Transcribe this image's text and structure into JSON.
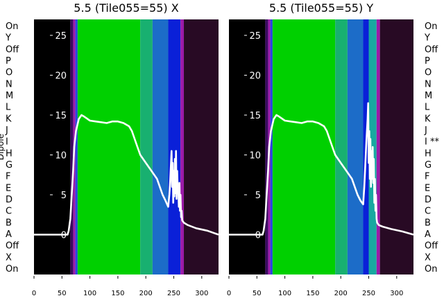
{
  "chart_data": [
    {
      "type": "heatmap",
      "title": "5.5 (Tile055=55) X",
      "ylabel": "Dipole",
      "xlim": [
        0,
        330
      ],
      "ylim": [
        -5,
        27
      ],
      "x_ticks": [
        0,
        50,
        100,
        150,
        200,
        250,
        300
      ],
      "y_ticks": [
        0,
        5,
        10,
        15,
        20,
        25
      ],
      "dipole_labels": [
        "On",
        "Y",
        "Off",
        "P",
        "O",
        "N",
        "M",
        "L",
        "K",
        "J",
        "I",
        "H",
        "G",
        "F",
        "E",
        "D",
        "C",
        "B",
        "A",
        "Off",
        "X",
        "On"
      ],
      "colormap_bands": [
        {
          "from": 0,
          "to": 65,
          "color": "#000000"
        },
        {
          "from": 65,
          "to": 70,
          "color": "#3a0a60"
        },
        {
          "from": 70,
          "to": 74,
          "color": "#9b1aa8"
        },
        {
          "from": 74,
          "to": 78,
          "color": "#2a40e0"
        },
        {
          "from": 78,
          "to": 190,
          "color": "#00d000"
        },
        {
          "from": 190,
          "to": 212,
          "color": "#18b070"
        },
        {
          "from": 212,
          "to": 240,
          "color": "#1c6cc8"
        },
        {
          "from": 240,
          "to": 262,
          "color": "#0a20d8"
        },
        {
          "from": 262,
          "to": 268,
          "color": "#9b1aa8"
        },
        {
          "from": 268,
          "to": 330,
          "color": "#280a24"
        }
      ],
      "series": [
        {
          "x": [
            0,
            60,
            62,
            65,
            70,
            72,
            75,
            80,
            85,
            90,
            100,
            110,
            120,
            130,
            140,
            150,
            160,
            170,
            175,
            180,
            185,
            190,
            200,
            210,
            220,
            230,
            235,
            240,
            242,
            243,
            244,
            245,
            246,
            247,
            248,
            249,
            250,
            251,
            252,
            253,
            254,
            255,
            256,
            257,
            258,
            259,
            260,
            261,
            262,
            263,
            264,
            265,
            268,
            275,
            290,
            310,
            330
          ],
          "y": [
            0,
            0,
            0.5,
            2,
            8,
            11,
            13,
            14.5,
            15,
            14.8,
            14.3,
            14.2,
            14.1,
            14,
            14.2,
            14.2,
            14,
            13.6,
            13,
            12,
            11,
            10,
            9,
            8,
            7,
            5,
            4.3,
            3.5,
            5,
            6,
            7.5,
            9,
            10.5,
            6,
            9,
            4,
            8,
            4.8,
            9.5,
            5.2,
            10.5,
            4.5,
            8,
            5.5,
            6,
            3.5,
            6.5,
            3,
            5,
            2.2,
            3,
            1.8,
            1.5,
            1.2,
            0.8,
            0.5,
            0
          ]
        }
      ]
    },
    {
      "type": "heatmap",
      "title": "5.5 (Tile055=55) Y",
      "xlim": [
        0,
        330
      ],
      "ylim": [
        -5,
        27
      ],
      "x_ticks": [
        0,
        50,
        100,
        150,
        200,
        250,
        300
      ],
      "y_ticks": [
        0,
        5,
        10,
        15,
        20,
        25
      ],
      "dipole_labels": [
        "On",
        "Y",
        "Off",
        "P",
        "O",
        "N",
        "M",
        "L",
        "K",
        "J",
        "I **",
        "H",
        "G",
        "F",
        "E",
        "D",
        "C",
        "B",
        "A",
        "Off",
        "X",
        "On"
      ],
      "colormap_bands": [
        {
          "from": 0,
          "to": 65,
          "color": "#000000"
        },
        {
          "from": 65,
          "to": 70,
          "color": "#3a0a60"
        },
        {
          "from": 70,
          "to": 74,
          "color": "#9b1aa8"
        },
        {
          "from": 74,
          "to": 78,
          "color": "#2a40e0"
        },
        {
          "from": 78,
          "to": 190,
          "color": "#00d000"
        },
        {
          "from": 190,
          "to": 212,
          "color": "#18b070"
        },
        {
          "from": 212,
          "to": 240,
          "color": "#1c6cc8"
        },
        {
          "from": 240,
          "to": 250,
          "color": "#0a20d8"
        },
        {
          "from": 250,
          "to": 264,
          "color": "#18a8a0"
        },
        {
          "from": 264,
          "to": 270,
          "color": "#9b1aa8"
        },
        {
          "from": 270,
          "to": 330,
          "color": "#280a24"
        }
      ],
      "series": [
        {
          "x": [
            0,
            60,
            62,
            65,
            70,
            72,
            75,
            80,
            85,
            90,
            100,
            110,
            120,
            130,
            140,
            150,
            160,
            170,
            175,
            180,
            185,
            190,
            200,
            210,
            220,
            230,
            235,
            240,
            242,
            244,
            246,
            248,
            249,
            250,
            251,
            252,
            253,
            254,
            255,
            256,
            257,
            258,
            259,
            260,
            261,
            262,
            263,
            264,
            265,
            268,
            275,
            290,
            310,
            330
          ],
          "y": [
            0,
            0,
            0.5,
            2,
            8,
            11,
            13,
            14.5,
            15,
            14.8,
            14.3,
            14.2,
            14.1,
            14,
            14.2,
            14.2,
            14,
            13.6,
            13,
            12,
            11,
            10,
            9,
            8,
            7,
            5,
            4.3,
            3.8,
            6,
            9,
            12,
            14.5,
            16.5,
            9,
            13,
            7,
            12,
            6,
            10.5,
            7,
            11,
            6.5,
            9.5,
            4,
            7,
            3,
            5,
            2,
            1.5,
            1.2,
            1,
            0.7,
            0.4,
            0
          ]
        }
      ]
    }
  ]
}
